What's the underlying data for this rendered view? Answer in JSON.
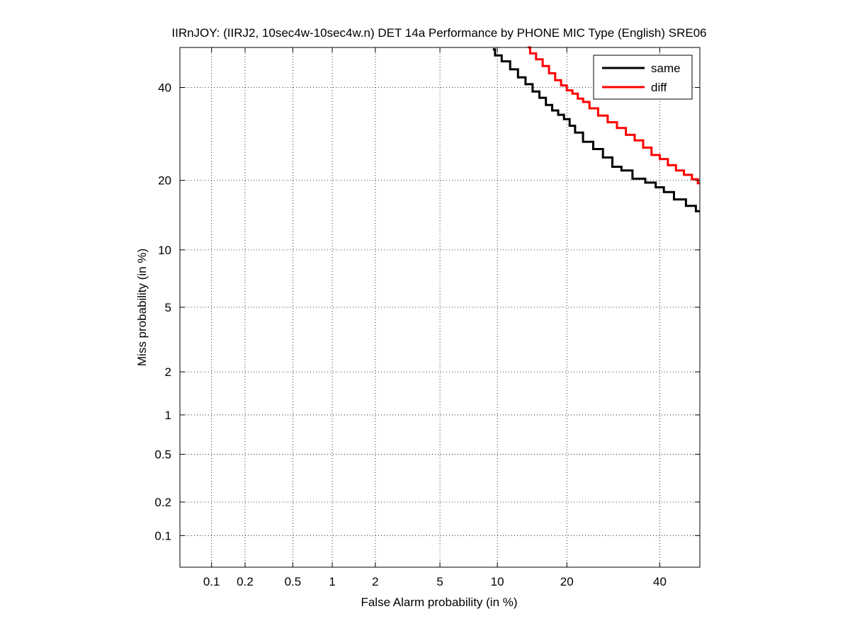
{
  "chart_data": {
    "type": "line",
    "title": "IIRnJOY: (IIRJ2, 10sec4w-10sec4w.n) DET 14a Performance by PHONE MIC Type (English) SRE06",
    "xlabel": "False Alarm probability (in %)",
    "ylabel": "Miss probability (in %)",
    "xscale": "probit",
    "yscale": "probit",
    "xlim": [
      0.05,
      50
    ],
    "ylim": [
      0.05,
      50
    ],
    "xticks": [
      0.1,
      0.2,
      0.5,
      1,
      2,
      5,
      10,
      20,
      40
    ],
    "xtick_labels": [
      "0.1",
      "0.2",
      "0.5",
      "1",
      "2",
      "5",
      "10",
      "20",
      "40"
    ],
    "yticks": [
      0.1,
      0.2,
      0.5,
      1,
      2,
      5,
      10,
      20,
      40
    ],
    "ytick_labels": [
      "0.1",
      "0.2",
      "0.5",
      "1",
      "2",
      "5",
      "10",
      "20",
      "40"
    ],
    "grid": true,
    "legend_position": "top-right",
    "series": [
      {
        "name": "same",
        "color": "#000000",
        "x": [
          9.5,
          10.0,
          11.0,
          12.0,
          13.0,
          14.0,
          15.0,
          16.0,
          17.0,
          18.0,
          19.0,
          20.0,
          21.0,
          22.0,
          24.0,
          26.0,
          28.0,
          30.0,
          32.0,
          35.0,
          38.0,
          40.0,
          42.0,
          45.0,
          48.0,
          50.0
        ],
        "y": [
          49.5,
          48.0,
          46.5,
          44.5,
          42.5,
          40.8,
          39.0,
          37.5,
          35.8,
          34.5,
          33.5,
          32.5,
          31.0,
          29.5,
          27.5,
          26.0,
          24.3,
          22.5,
          21.8,
          20.3,
          19.6,
          18.8,
          18.0,
          16.8,
          15.8,
          15.0
        ]
      },
      {
        "name": "diff",
        "color": "#ff0000",
        "x": [
          13.8,
          14.5,
          15.5,
          16.5,
          17.5,
          18.5,
          19.5,
          20.5,
          21.5,
          22.5,
          23.5,
          25.0,
          27.0,
          29.0,
          31.0,
          33.0,
          35.0,
          37.0,
          39.0,
          41.0,
          43.0,
          45.0,
          47.0,
          49.0,
          50.0
        ],
        "y": [
          50.0,
          48.5,
          47.0,
          45.3,
          43.5,
          41.8,
          40.5,
          39.3,
          38.5,
          37.3,
          36.5,
          35.0,
          33.3,
          31.8,
          30.5,
          29.0,
          27.8,
          26.3,
          24.8,
          24.0,
          22.8,
          21.8,
          21.0,
          20.2,
          19.5
        ]
      }
    ]
  }
}
